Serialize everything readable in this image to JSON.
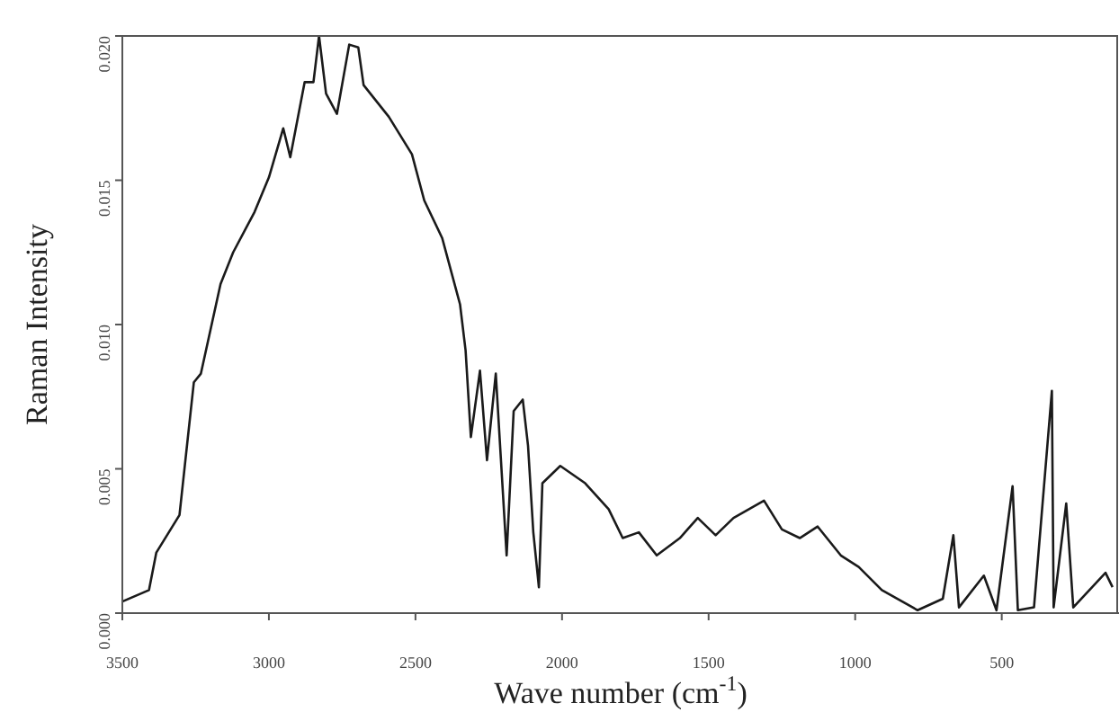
{
  "chart_data": {
    "type": "line",
    "xlabel": "Wave number (cm$^{-1}$)",
    "ylabel": "Raman Intensity",
    "series": [
      {
        "color": "#1a1a1a",
        "x": [
          3500,
          3409,
          3384,
          3305,
          3287,
          3256,
          3232,
          3165,
          3122,
          3049,
          3000,
          2951,
          2927,
          2878,
          2848,
          2829,
          2805,
          2768,
          2726,
          2695,
          2677,
          2591,
          2512,
          2470,
          2409,
          2348,
          2329,
          2311,
          2280,
          2256,
          2226,
          2189,
          2165,
          2134,
          2116,
          2098,
          2079,
          2067,
          2006,
          1921,
          1841,
          1793,
          1738,
          1677,
          1598,
          1537,
          1476,
          1415,
          1311,
          1250,
          1189,
          1128,
          1049,
          988,
          909,
          787,
          701,
          665,
          646,
          561,
          518,
          463,
          445,
          390,
          329,
          323,
          280,
          256,
          146,
          122
        ],
        "values": [
          0.0004,
          0.0008,
          0.0021,
          0.0034,
          0.0051,
          0.008,
          0.0083,
          0.0114,
          0.0125,
          0.0139,
          0.0151,
          0.0168,
          0.0158,
          0.0184,
          0.0184,
          0.02,
          0.018,
          0.0173,
          0.0197,
          0.0196,
          0.0183,
          0.0172,
          0.0159,
          0.0143,
          0.013,
          0.0107,
          0.0091,
          0.0061,
          0.0084,
          0.0053,
          0.0083,
          0.002,
          0.007,
          0.0074,
          0.0058,
          0.0028,
          0.0009,
          0.0045,
          0.0051,
          0.0045,
          0.0036,
          0.0026,
          0.0028,
          0.002,
          0.0026,
          0.0033,
          0.0027,
          0.0033,
          0.0039,
          0.0029,
          0.0026,
          0.003,
          0.002,
          0.0016,
          0.0008,
          0.0001,
          0.0005,
          0.0027,
          0.0002,
          0.0013,
          0.0001,
          0.0044,
          0.0001,
          0.0002,
          0.0077,
          0.0002,
          0.0038,
          0.0002,
          0.0014,
          0.0009
        ]
      }
    ],
    "xlim": [
      3500,
      100
    ],
    "xticks": [
      3500,
      3000,
      2500,
      2000,
      1500,
      1000,
      500
    ],
    "ylim": [
      0,
      0.02
    ],
    "yticks": [
      {
        "value": 0,
        "label": "0.000"
      },
      {
        "value": 0.005,
        "label": "0.005"
      },
      {
        "value": 0.01,
        "label": "0.010"
      },
      {
        "value": 0.015,
        "label": "0.015"
      },
      {
        "value": 0.02,
        "label": "0.020"
      }
    ],
    "grid": false,
    "legend": false,
    "marker": "none",
    "line_style": "solid"
  }
}
